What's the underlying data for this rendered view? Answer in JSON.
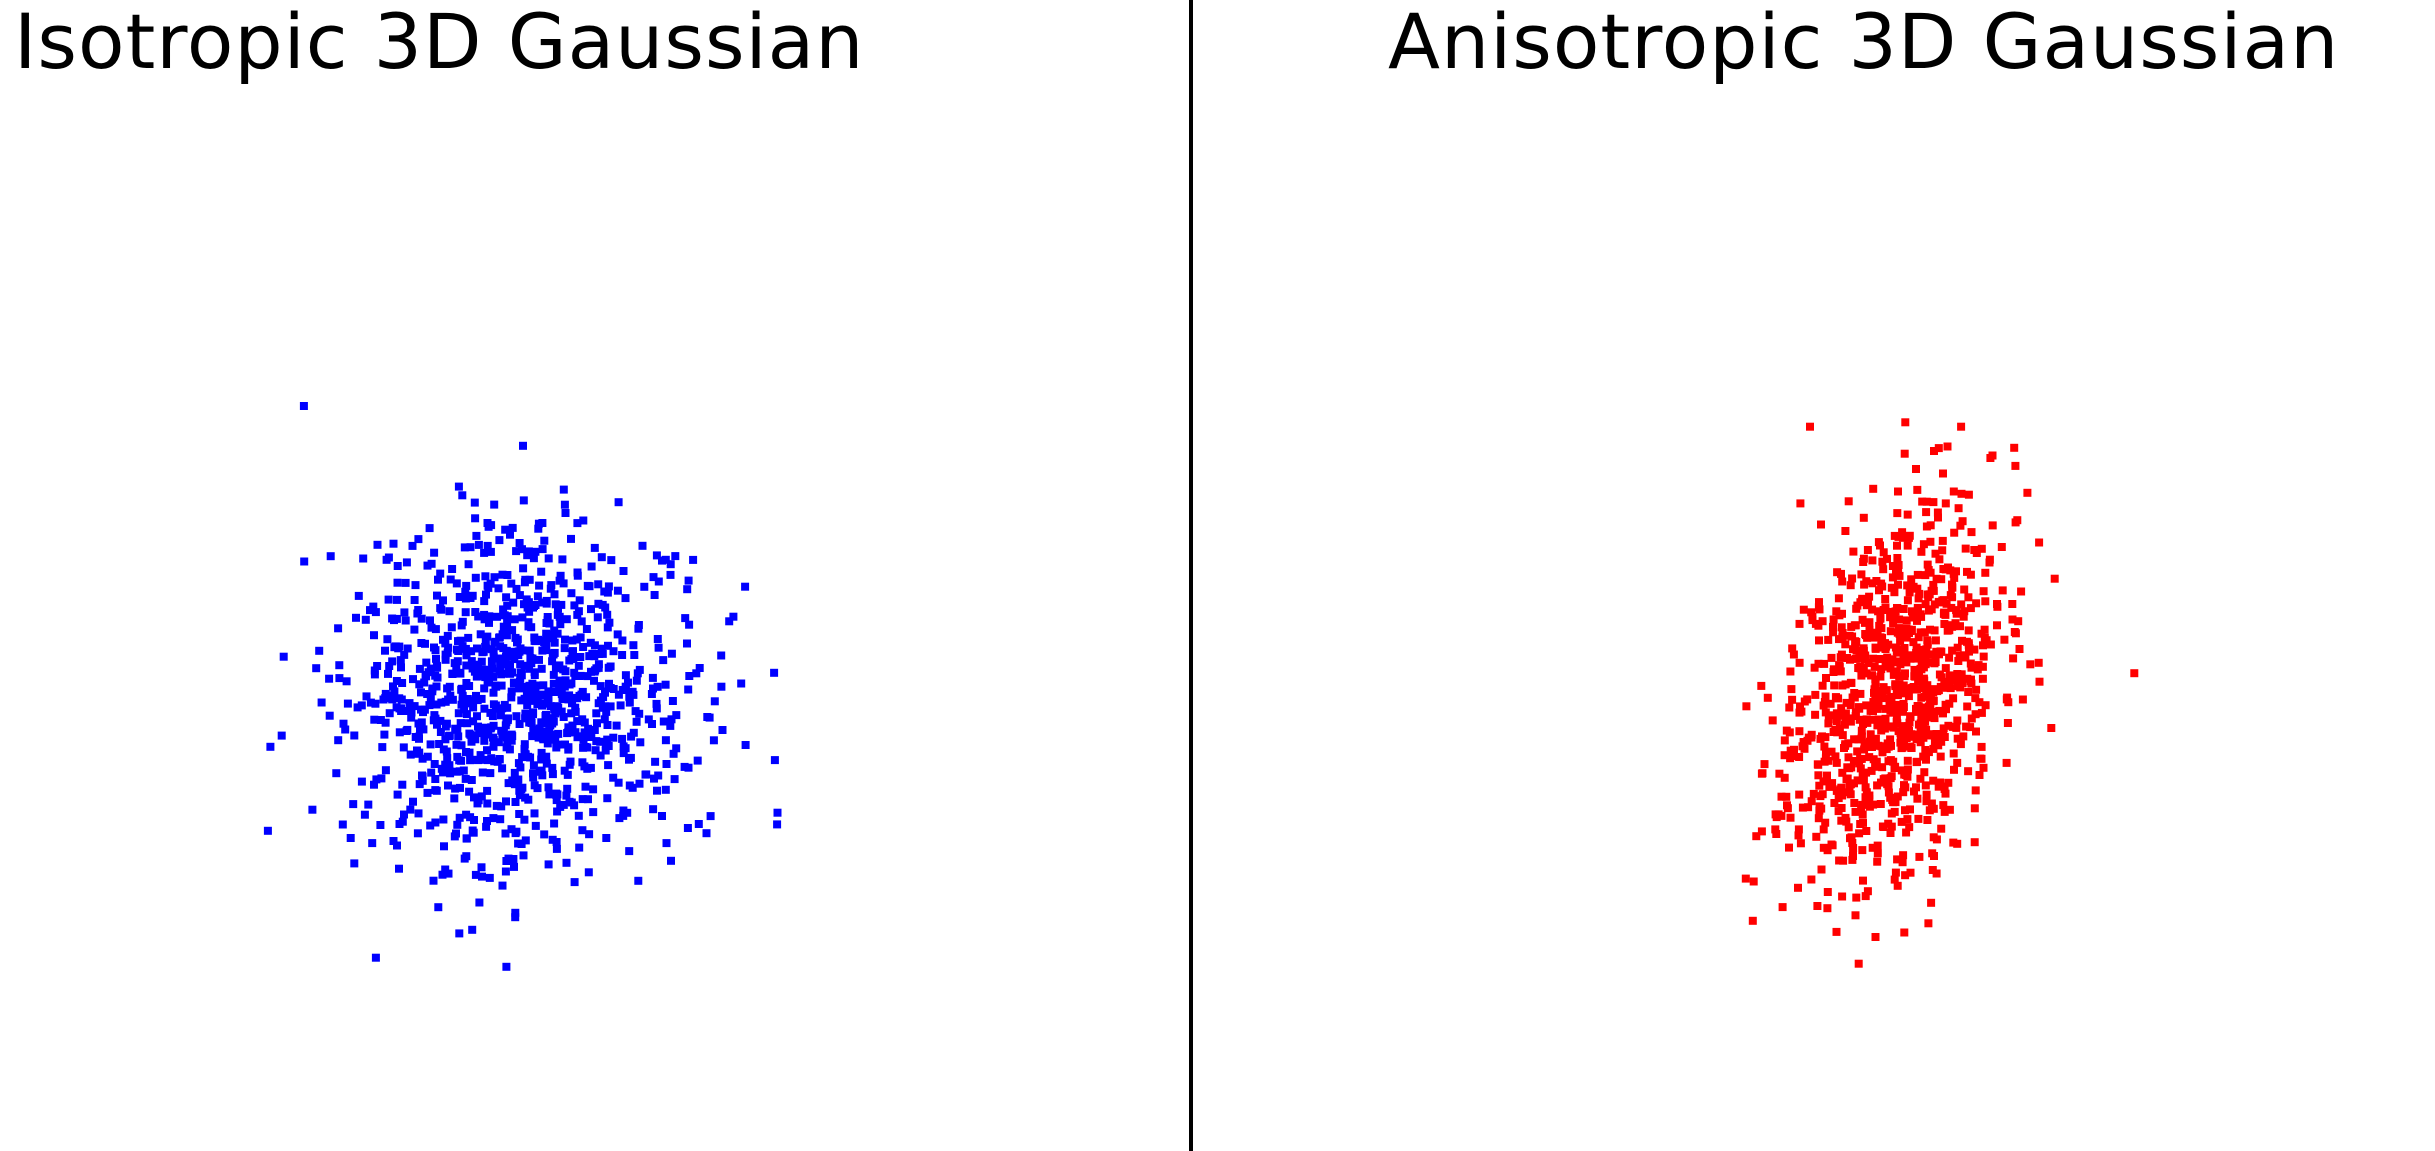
{
  "chart_data": [
    {
      "type": "scatter",
      "title": "Isotropic 3D Gaussian",
      "color": "#0000ff",
      "xlim": [
        -3.8,
        3.8
      ],
      "ylim": [
        -3.8,
        3.8
      ],
      "axes_visible": false,
      "grid": false,
      "anchor_points": [
        [
          -2.29,
          3.4
        ],
        [
          -1.49,
          -2.73
        ],
        [
          -2.69,
          -1.32
        ],
        [
          -1.68,
          1.29
        ],
        [
          -1.49,
          1.11
        ],
        [
          -0.25,
          2.1
        ],
        [
          0.0,
          1.97
        ],
        [
          -1.05,
          1.41
        ],
        [
          0.36,
          2.1
        ],
        [
          -1.91,
          0.93
        ],
        [
          -2.12,
          0.68
        ],
        [
          -2.01,
          0.37
        ],
        [
          -1.85,
          -0.13
        ],
        [
          -1.93,
          -0.68
        ],
        [
          -1.77,
          -1.4
        ],
        [
          -0.6,
          -1.35
        ],
        [
          -0.05,
          -1.35
        ],
        [
          0.38,
          -1.36
        ],
        [
          1.07,
          -1.4
        ],
        [
          1.59,
          -1.08
        ],
        [
          1.94,
          -0.61
        ],
        [
          1.98,
          0.25
        ],
        [
          2.07,
          0.43
        ],
        [
          1.99,
          0.97
        ],
        [
          1.08,
          1.08
        ],
        [
          0.57,
          1.19
        ],
        [
          0.75,
          1.55
        ],
        [
          -0.8,
          1.47
        ],
        [
          1.42,
          0.43
        ],
        [
          1.6,
          -0.74
        ],
        [
          -0.4,
          -1.2
        ]
      ],
      "n_random": 1050,
      "spread": [
        0.92,
        0.92
      ],
      "center": [
        0.1,
        0.15
      ],
      "seed": 7
    },
    {
      "type": "scatter",
      "title": "Anisotropic 3D Gaussian",
      "color": "#ff0000",
      "xlim": [
        -3.8,
        3.8
      ],
      "ylim": [
        -3.8,
        3.8
      ],
      "axes_visible": false,
      "grid": false,
      "anchor_points": [
        [
          1.05,
          2.85
        ],
        [
          1.35,
          0.7
        ],
        [
          1.47,
          0.53
        ],
        [
          -0.62,
          1.45
        ],
        [
          -0.85,
          -1.75
        ],
        [
          -0.5,
          -1.6
        ],
        [
          -0.78,
          -2.0
        ],
        [
          -0.25,
          -2.5
        ],
        [
          0.07,
          -2.45
        ],
        [
          0.4,
          2.9
        ],
        [
          0.55,
          2.95
        ],
        [
          0.2,
          2.7
        ],
        [
          0.0,
          2.45
        ],
        [
          0.5,
          2.65
        ],
        [
          0.95,
          -0.62
        ],
        [
          0.4,
          -1.6
        ],
        [
          -0.6,
          -0.4
        ],
        [
          1.1,
          1.2
        ],
        [
          -0.2,
          1.85
        ],
        [
          0.62,
          2.45
        ]
      ],
      "n_random": 1000,
      "spread": [
        0.58,
        1.0
      ],
      "center": [
        -0.05,
        0.25
      ],
      "correlation": 0.36,
      "seed": 11
    }
  ]
}
